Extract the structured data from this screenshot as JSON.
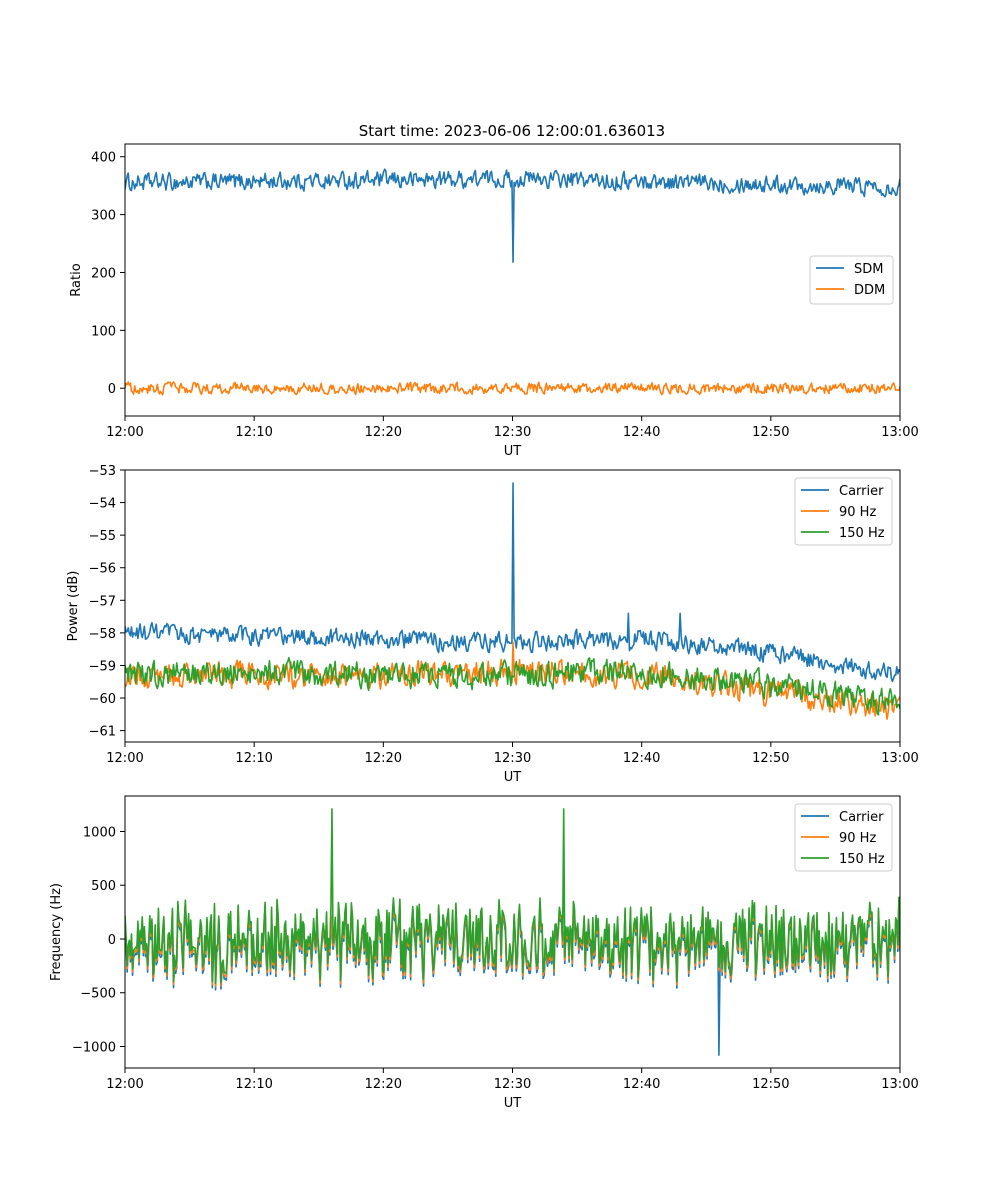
{
  "figure": {
    "title": "Start time: 2023-06-06 12:00:01.636013",
    "background": "#ffffff"
  },
  "chart_data": [
    {
      "type": "line",
      "title": "Start time: 2023-06-06 12:00:01.636013",
      "xlabel": "UT",
      "ylabel": "Ratio",
      "xlim": [
        "12:00",
        "13:00"
      ],
      "ylim": [
        -48,
        422
      ],
      "x_ticks": [
        "12:00",
        "12:10",
        "12:20",
        "12:30",
        "12:40",
        "12:50",
        "13:00"
      ],
      "y_ticks": [
        0,
        100,
        200,
        300,
        400
      ],
      "y_tick_labels": [
        "0",
        "100",
        "200",
        "300",
        "400"
      ],
      "grid": false,
      "legend_position": "center-right",
      "series": [
        {
          "name": "SDM",
          "color": "#1f77b4",
          "x": [
            "12:00",
            "12:30",
            "13:00"
          ],
          "values": [
            355,
            362,
            348
          ],
          "noise": 13,
          "spikes": [
            {
              "x": "12:30",
              "value": 218
            }
          ]
        },
        {
          "name": "DDM",
          "color": "#ff7f0e",
          "x": [
            "12:00",
            "12:30",
            "13:00"
          ],
          "values": [
            0,
            0,
            0
          ],
          "noise": 8,
          "spikes": []
        }
      ]
    },
    {
      "type": "line",
      "xlabel": "UT",
      "ylabel": "Power (dB)",
      "xlim": [
        "12:00",
        "13:00"
      ],
      "ylim": [
        -61.35,
        -53
      ],
      "x_ticks": [
        "12:00",
        "12:10",
        "12:20",
        "12:30",
        "12:40",
        "12:50",
        "13:00"
      ],
      "y_ticks": [
        -61,
        -60,
        -59,
        -58,
        -57,
        -56,
        -55,
        -54,
        -53
      ],
      "y_tick_labels": [
        "−61",
        "−60",
        "−59",
        "−58",
        "−57",
        "−56",
        "−55",
        "−54",
        "−53"
      ],
      "grid": false,
      "legend_position": "top-right",
      "series": [
        {
          "name": "Carrier",
          "color": "#1f77b4",
          "x": [
            "12:00",
            "12:10",
            "12:20",
            "12:30",
            "12:40",
            "12:50",
            "13:00"
          ],
          "values": [
            -58.0,
            -58.1,
            -58.2,
            -58.3,
            -58.2,
            -58.6,
            -59.3
          ],
          "noise": 0.25,
          "spikes": [
            {
              "x": "12:30",
              "value": -53.4
            },
            {
              "x": "12:39",
              "value": -57.4
            },
            {
              "x": "12:43",
              "value": -57.4
            }
          ]
        },
        {
          "name": "90 Hz",
          "color": "#ff7f0e",
          "x": [
            "12:00",
            "12:10",
            "12:20",
            "12:30",
            "12:40",
            "12:50",
            "13:00"
          ],
          "values": [
            -59.3,
            -59.3,
            -59.3,
            -59.2,
            -59.3,
            -59.8,
            -60.3
          ],
          "noise": 0.35,
          "spikes": [
            {
              "x": "12:30",
              "value": -58.3
            }
          ]
        },
        {
          "name": "150 Hz",
          "color": "#2ca02c",
          "x": [
            "12:00",
            "12:10",
            "12:20",
            "12:30",
            "12:40",
            "12:50",
            "13:00"
          ],
          "values": [
            -59.3,
            -59.2,
            -59.3,
            -59.3,
            -59.2,
            -59.6,
            -60.2
          ],
          "noise": 0.35,
          "spikes": []
        }
      ]
    },
    {
      "type": "line",
      "xlabel": "UT",
      "ylabel": "Frequency (Hz)",
      "xlim": [
        "12:00",
        "13:00"
      ],
      "ylim": [
        -1200,
        1330
      ],
      "x_ticks": [
        "12:00",
        "12:10",
        "12:20",
        "12:30",
        "12:40",
        "12:50",
        "13:00"
      ],
      "y_ticks": [
        -1000,
        -500,
        0,
        500,
        1000
      ],
      "y_tick_labels": [
        "−1000",
        "−500",
        "0",
        "500",
        "1000"
      ],
      "grid": false,
      "legend_position": "top-right",
      "series": [
        {
          "name": "Carrier",
          "color": "#1f77b4",
          "x": [
            "12:00",
            "12:30",
            "13:00"
          ],
          "values": [
            -60,
            -60,
            -60
          ],
          "noise": 420,
          "spikes": [
            {
              "x": "12:46",
              "value": -1080
            }
          ]
        },
        {
          "name": "90 Hz",
          "color": "#ff7f0e",
          "x": [
            "12:00",
            "12:30",
            "13:00"
          ],
          "values": [
            -30,
            -30,
            -30
          ],
          "noise": 420,
          "spikes": []
        },
        {
          "name": "150 Hz",
          "color": "#2ca02c",
          "x": [
            "12:00",
            "12:30",
            "13:00"
          ],
          "values": [
            0,
            0,
            0
          ],
          "noise": 420,
          "spikes": [
            {
              "x": "12:16",
              "value": 1210
            },
            {
              "x": "12:34",
              "value": 1210
            }
          ]
        }
      ]
    }
  ]
}
